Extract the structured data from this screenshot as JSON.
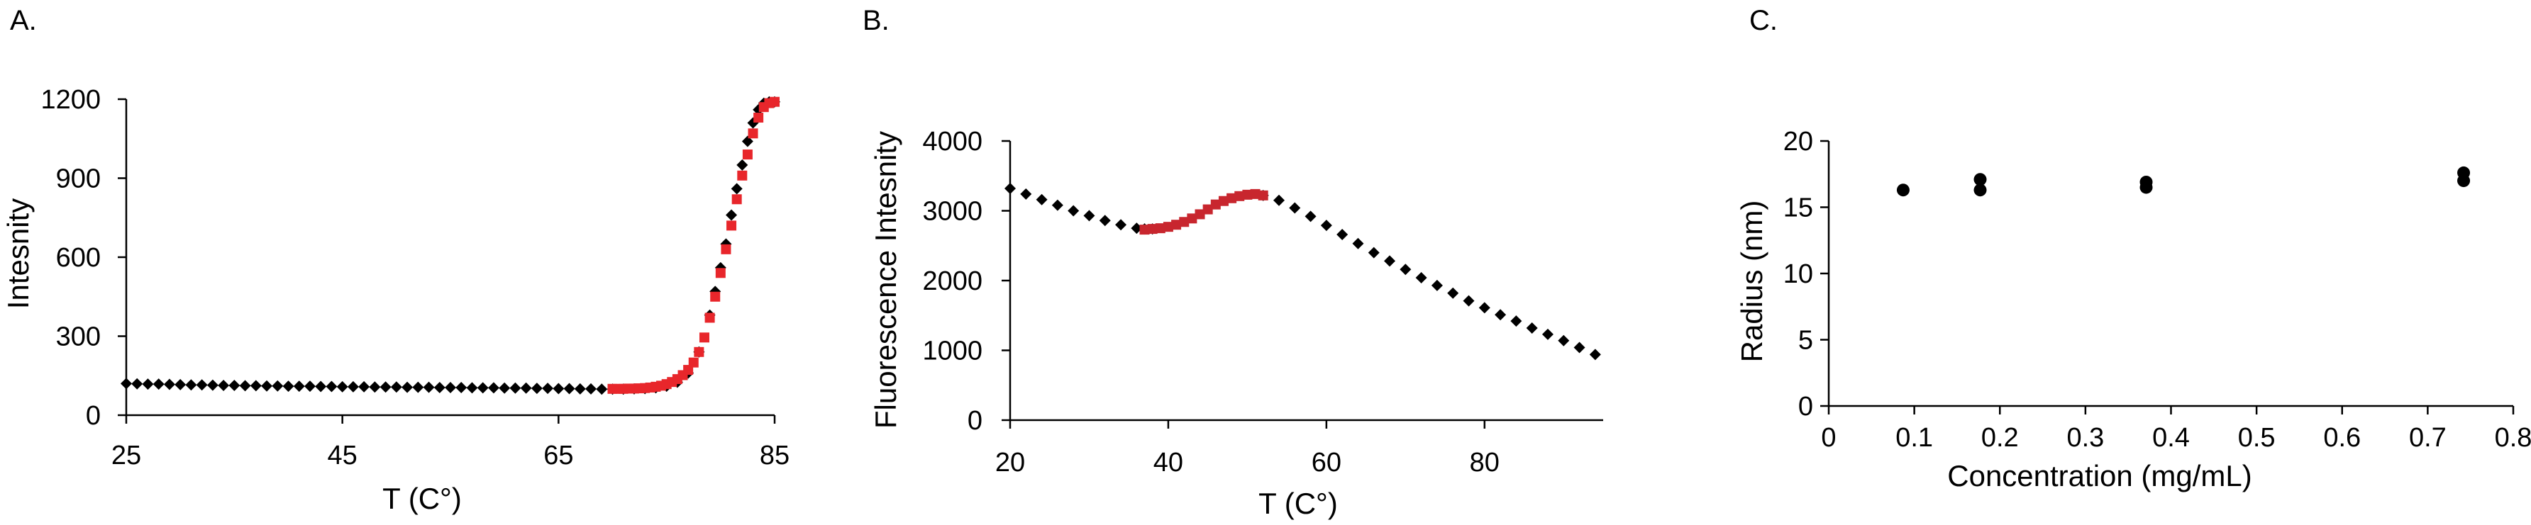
{
  "panels": [
    {
      "label": "A."
    },
    {
      "label": "B."
    },
    {
      "label": "C."
    }
  ],
  "chart_data": [
    {
      "type": "scatter",
      "title": "",
      "xlabel": "T (C°)",
      "ylabel": "Intesnity",
      "xlim": [
        25,
        85
      ],
      "ylim": [
        0,
        1200
      ],
      "xticks": [
        25,
        45,
        65,
        85
      ],
      "yticks": [
        0,
        300,
        600,
        900,
        1200
      ],
      "grid": false,
      "colors": {
        "black_series": "#000000",
        "red_series": "#e8262b"
      },
      "series": [
        {
          "marker": "diamond",
          "color": "#000000",
          "x": [
            25,
            26,
            27,
            28,
            29,
            30,
            31,
            32,
            33,
            34,
            35,
            36,
            37,
            38,
            39,
            40,
            41,
            42,
            43,
            44,
            45,
            46,
            47,
            48,
            49,
            50,
            51,
            52,
            53,
            54,
            55,
            56,
            57,
            58,
            59,
            60,
            61,
            62,
            63,
            64,
            65,
            66,
            67,
            68,
            69,
            70,
            71,
            72,
            73,
            74,
            75,
            76,
            77,
            78,
            79,
            79.5,
            80,
            80.5,
            81,
            81.5,
            82,
            82.5,
            83,
            83.5,
            84,
            84.5,
            85
          ],
          "y": [
            120,
            119,
            118,
            118,
            117,
            116,
            115,
            115,
            114,
            113,
            113,
            112,
            112,
            111,
            111,
            110,
            110,
            110,
            109,
            109,
            108,
            108,
            108,
            107,
            107,
            107,
            106,
            106,
            106,
            105,
            105,
            105,
            104,
            104,
            104,
            103,
            103,
            103,
            102,
            102,
            101,
            101,
            100,
            100,
            99,
            99,
            99,
            100,
            101,
            104,
            110,
            125,
            160,
            240,
            380,
            470,
            560,
            650,
            760,
            860,
            950,
            1040,
            1110,
            1160,
            1185,
            1190,
            1190
          ]
        },
        {
          "marker": "square",
          "color": "#e8262b",
          "x": [
            70,
            70.5,
            71,
            71.5,
            72,
            72.5,
            73,
            73.5,
            74,
            74.5,
            75,
            75.5,
            76,
            76.5,
            77,
            77.5,
            78,
            78.5,
            79,
            79.5,
            80,
            80.5,
            81,
            81.5,
            82,
            82.5,
            83,
            83.5,
            84,
            84.5,
            85
          ],
          "y": [
            100,
            100,
            100,
            101,
            101,
            102,
            103,
            105,
            108,
            112,
            118,
            126,
            137,
            152,
            172,
            200,
            240,
            295,
            370,
            450,
            540,
            630,
            720,
            820,
            910,
            990,
            1070,
            1130,
            1170,
            1185,
            1190
          ]
        }
      ]
    },
    {
      "type": "scatter",
      "title": "",
      "xlabel": "T (C°)",
      "ylabel": "Fluorescence Intesnity",
      "xlim": [
        20,
        95
      ],
      "ylim": [
        0,
        4000
      ],
      "xticks": [
        20,
        40,
        60,
        80
      ],
      "yticks": [
        0,
        1000,
        2000,
        3000,
        4000
      ],
      "grid": false,
      "series": [
        {
          "marker": "diamond",
          "color": "#000000",
          "x": [
            20,
            22,
            24,
            26,
            28,
            30,
            32,
            34,
            36,
            37,
            38,
            52,
            54,
            56,
            58,
            60,
            62,
            64,
            66,
            68,
            70,
            72,
            74,
            76,
            78,
            80,
            82,
            84,
            86,
            88,
            90,
            92,
            94
          ],
          "y": [
            3320,
            3240,
            3160,
            3080,
            3000,
            2930,
            2860,
            2800,
            2750,
            2740,
            2740,
            3220,
            3150,
            3040,
            2920,
            2790,
            2660,
            2530,
            2400,
            2280,
            2160,
            2040,
            1930,
            1820,
            1710,
            1610,
            1510,
            1420,
            1320,
            1230,
            1140,
            1040,
            940
          ]
        },
        {
          "marker": "square",
          "color": "#c8262e",
          "x": [
            37,
            38,
            39,
            40,
            41,
            42,
            43,
            44,
            45,
            46,
            47,
            48,
            49,
            50,
            51,
            52
          ],
          "y": [
            2730,
            2740,
            2750,
            2770,
            2800,
            2840,
            2890,
            2950,
            3020,
            3090,
            3140,
            3180,
            3210,
            3230,
            3240,
            3220
          ]
        }
      ]
    },
    {
      "type": "scatter",
      "title": "",
      "xlabel": "Concentration (mg/mL)",
      "ylabel": "Radius (nm)",
      "xlim": [
        0,
        0.8
      ],
      "ylim": [
        0,
        20
      ],
      "xticks": [
        0,
        0.1,
        0.2,
        0.3,
        0.4,
        0.5,
        0.6,
        0.7,
        0.8
      ],
      "yticks": [
        0,
        5,
        10,
        15,
        20
      ],
      "grid": false,
      "series": [
        {
          "marker": "circle",
          "color": "#000000",
          "x": [
            0.087,
            0.177,
            0.177,
            0.371,
            0.371,
            0.742,
            0.742
          ],
          "y": [
            16.3,
            16.3,
            17.1,
            16.5,
            16.9,
            17.0,
            17.6
          ]
        }
      ]
    }
  ]
}
